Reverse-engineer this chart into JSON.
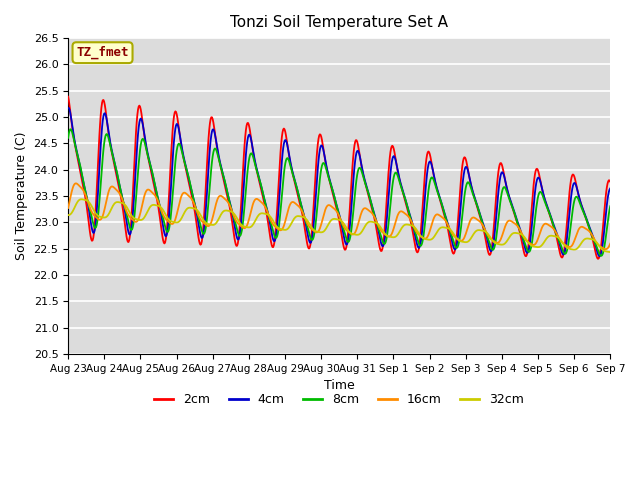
{
  "title": "Tonzi Soil Temperature Set A",
  "xlabel": "Time",
  "ylabel": "Soil Temperature (C)",
  "ylim": [
    20.5,
    26.5
  ],
  "xlim": [
    0,
    15
  ],
  "annotation": "TZ_fmet",
  "annotation_color": "#8B0000",
  "annotation_bg": "#FFFFCC",
  "annotation_border": "#AAAA00",
  "plot_bg_color": "#DCDCDC",
  "grid_color": "#FFFFFF",
  "line_colors": [
    "#FF0000",
    "#0000CC",
    "#00BB00",
    "#FF8C00",
    "#CCCC00"
  ],
  "line_labels": [
    "2cm",
    "4cm",
    "8cm",
    "16cm",
    "32cm"
  ],
  "linewidth": 1.3,
  "x_tick_labels": [
    "Aug 23",
    "Aug 24",
    "Aug 25",
    "Aug 26",
    "Aug 27",
    "Aug 28",
    "Aug 29",
    "Aug 30",
    "Aug 31",
    "Sep 1",
    "Sep 2",
    "Sep 3",
    "Sep 4",
    "Sep 5",
    "Sep 6",
    "Sep 7"
  ],
  "title_fontsize": 11,
  "axis_label_fontsize": 9,
  "tick_fontsize_x": 7.5,
  "tick_fontsize_y": 8,
  "annotation_fontsize": 9,
  "legend_fontsize": 9,
  "legend_ncol": 5,
  "ytick_interval": 0.5
}
